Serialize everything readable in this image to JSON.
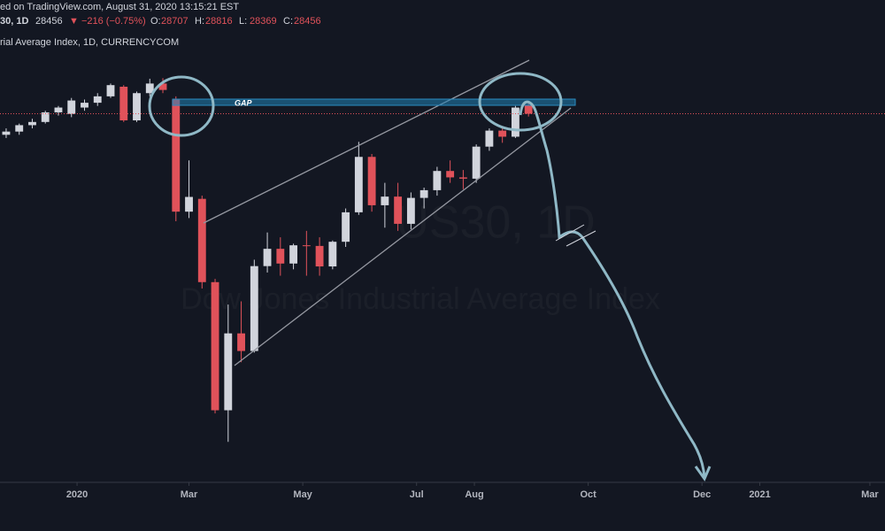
{
  "header": {
    "source": "ed on TradingView.com, August 31, 2020 13:15:21 EST",
    "symbol": "30, 1D",
    "last": 28456,
    "change": "▼ −216 (−0.75%)",
    "ohlc": [
      {
        "label": "O:",
        "value": 28707
      },
      {
        "label": "H:",
        "value": 28816
      },
      {
        "label": "L:",
        "value": 28369
      },
      {
        "label": "C:",
        "value": 28456
      }
    ],
    "name": "rial Average Index, 1D, CURRENCYCOM"
  },
  "chart_data": {
    "type": "candlestick",
    "watermark": "US30, 1D",
    "watermark_sub": "Dow Jones Industrial Average Index",
    "annotation": "GAP",
    "up_color": "#d1d4dc",
    "down_color": "#e0525a",
    "x": [
      -38,
      -31,
      -24,
      -17,
      -10,
      -3,
      4,
      11,
      18,
      25,
      32,
      39,
      46,
      53,
      60,
      67,
      74,
      81,
      88,
      95,
      102,
      109,
      116,
      123,
      130,
      137,
      144,
      151,
      158,
      165,
      172,
      179,
      186,
      193,
      200,
      207,
      214,
      221,
      228,
      235,
      242
    ],
    "open": [
      27800,
      27900,
      28100,
      28200,
      28500,
      28450,
      28650,
      28800,
      29000,
      29300,
      28250,
      29100,
      29400,
      28900,
      25400,
      25800,
      23200,
      19200,
      21600,
      21050,
      23700,
      24240,
      23780,
      24350,
      24330,
      23690,
      24460,
      25380,
      27110,
      25600,
      25870,
      25020,
      25830,
      26070,
      26670,
      26470,
      26430,
      27430,
      27930,
      27740,
      28707
    ],
    "high": [
      28000,
      28150,
      28300,
      28550,
      28700,
      28950,
      28900,
      29100,
      29400,
      29350,
      29150,
      29550,
      29568,
      29000,
      27000,
      25900,
      23300,
      22500,
      22600,
      23900,
      24750,
      24600,
      24400,
      24800,
      24600,
      24500,
      25500,
      27580,
      27200,
      26300,
      26300,
      26000,
      26150,
      26800,
      27000,
      26700,
      27500,
      28000,
      28000,
      28700,
      28816
    ],
    "low": [
      27700,
      27800,
      28000,
      28150,
      28400,
      28350,
      28550,
      28700,
      28950,
      28200,
      28200,
      29000,
      29100,
      25100,
      25200,
      23000,
      19100,
      18213,
      20700,
      21000,
      23500,
      23400,
      23600,
      23400,
      23400,
      23600,
      24300,
      25300,
      25400,
      24900,
      24800,
      24850,
      25500,
      25900,
      26300,
      26100,
      26300,
      27300,
      27550,
      27700,
      28369
    ],
    "close": [
      27900,
      28100,
      28200,
      28500,
      28650,
      28870,
      28800,
      29000,
      29350,
      28250,
      29100,
      29400,
      29200,
      25400,
      25860,
      23200,
      19200,
      21600,
      21050,
      23700,
      24240,
      23780,
      24350,
      24330,
      23690,
      24460,
      25380,
      27110,
      25600,
      25870,
      25020,
      25830,
      26070,
      26670,
      26470,
      26430,
      27430,
      27930,
      27740,
      28650,
      28456
    ],
    "xlim": [
      -41.3,
      433.1
    ],
    "ylim": [
      16950,
      30350
    ],
    "xticks": [
      {
        "value": 0,
        "label": "2020"
      },
      {
        "value": 60,
        "label": "Mar"
      },
      {
        "value": 121,
        "label": "May"
      },
      {
        "value": 182,
        "label": "Jul"
      },
      {
        "value": 213,
        "label": "Aug"
      },
      {
        "value": 274,
        "label": "Oct"
      },
      {
        "value": 335,
        "label": "Dec"
      },
      {
        "value": 366,
        "label": "2021"
      },
      {
        "value": 425,
        "label": "Mar"
      }
    ]
  }
}
